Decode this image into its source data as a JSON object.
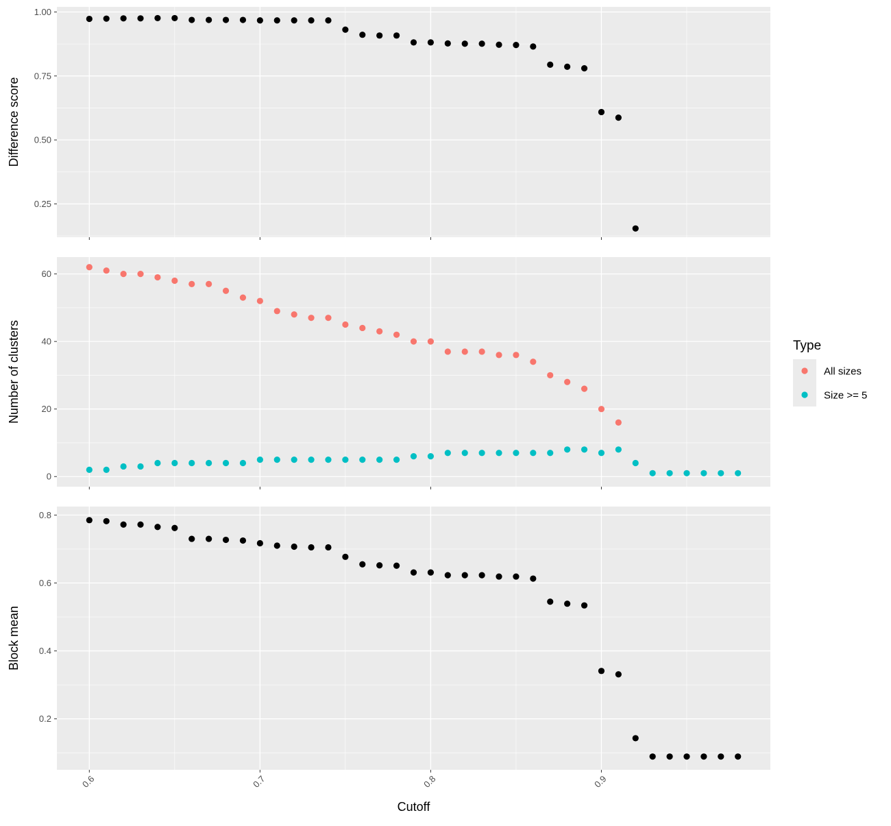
{
  "chart_data": {
    "type": "scatter",
    "xlabel": "Cutoff",
    "x_ticks": [
      "0.6",
      "0.7",
      "0.8",
      "0.9"
    ],
    "x_tick_values": [
      0.6,
      0.7,
      0.8,
      0.9
    ],
    "xlim": [
      0.581,
      0.999
    ],
    "background": "#ebebeb",
    "grid": true,
    "legend": {
      "title": "Type",
      "placement": "right",
      "entries": [
        {
          "label": "All sizes",
          "color": "#f8766d"
        },
        {
          "label": "Size >= 5",
          "color": "#00bfc4"
        }
      ]
    },
    "panels": [
      {
        "ylabel": "Difference score",
        "ylim": [
          0.12,
          1.02
        ],
        "y_ticks": [
          "0.25",
          "0.50",
          "0.75",
          "1.00"
        ],
        "y_tick_values": [
          0.25,
          0.5,
          0.75,
          1.0
        ],
        "series": [
          {
            "color": "#000000",
            "points": [
              [
                0.6,
                0.973
              ],
              [
                0.61,
                0.974
              ],
              [
                0.62,
                0.975
              ],
              [
                0.63,
                0.975
              ],
              [
                0.64,
                0.976
              ],
              [
                0.65,
                0.976
              ],
              [
                0.66,
                0.969
              ],
              [
                0.67,
                0.969
              ],
              [
                0.68,
                0.969
              ],
              [
                0.69,
                0.969
              ],
              [
                0.7,
                0.967
              ],
              [
                0.71,
                0.967
              ],
              [
                0.72,
                0.967
              ],
              [
                0.73,
                0.967
              ],
              [
                0.74,
                0.967
              ],
              [
                0.75,
                0.931
              ],
              [
                0.76,
                0.911
              ],
              [
                0.77,
                0.908
              ],
              [
                0.78,
                0.908
              ],
              [
                0.79,
                0.881
              ],
              [
                0.8,
                0.881
              ],
              [
                0.81,
                0.877
              ],
              [
                0.82,
                0.876
              ],
              [
                0.83,
                0.876
              ],
              [
                0.84,
                0.872
              ],
              [
                0.85,
                0.871
              ],
              [
                0.86,
                0.865
              ],
              [
                0.87,
                0.794
              ],
              [
                0.88,
                0.786
              ],
              [
                0.89,
                0.78
              ],
              [
                0.9,
                0.609
              ],
              [
                0.91,
                0.587
              ],
              [
                0.92,
                0.154
              ]
            ]
          }
        ]
      },
      {
        "ylabel": "Number of clusters",
        "ylim": [
          -3,
          65
        ],
        "y_ticks": [
          "0",
          "20",
          "40",
          "60"
        ],
        "y_tick_values": [
          0,
          20,
          40,
          60
        ],
        "series": [
          {
            "name": "All sizes",
            "color": "#f8766d",
            "points": [
              [
                0.6,
                62
              ],
              [
                0.61,
                61
              ],
              [
                0.62,
                60
              ],
              [
                0.63,
                60
              ],
              [
                0.64,
                59
              ],
              [
                0.65,
                58
              ],
              [
                0.66,
                57
              ],
              [
                0.67,
                57
              ],
              [
                0.68,
                55
              ],
              [
                0.69,
                53
              ],
              [
                0.7,
                52
              ],
              [
                0.71,
                49
              ],
              [
                0.72,
                48
              ],
              [
                0.73,
                47
              ],
              [
                0.74,
                47
              ],
              [
                0.75,
                45
              ],
              [
                0.76,
                44
              ],
              [
                0.77,
                43
              ],
              [
                0.78,
                42
              ],
              [
                0.79,
                40
              ],
              [
                0.8,
                40
              ],
              [
                0.81,
                37
              ],
              [
                0.82,
                37
              ],
              [
                0.83,
                37
              ],
              [
                0.84,
                36
              ],
              [
                0.85,
                36
              ],
              [
                0.86,
                34
              ],
              [
                0.87,
                30
              ],
              [
                0.88,
                28
              ],
              [
                0.89,
                26
              ],
              [
                0.9,
                20
              ],
              [
                0.91,
                16
              ]
            ]
          },
          {
            "name": "Size >= 5",
            "color": "#00bfc4",
            "points": [
              [
                0.6,
                2
              ],
              [
                0.61,
                2
              ],
              [
                0.62,
                3
              ],
              [
                0.63,
                3
              ],
              [
                0.64,
                4
              ],
              [
                0.65,
                4
              ],
              [
                0.66,
                4
              ],
              [
                0.67,
                4
              ],
              [
                0.68,
                4
              ],
              [
                0.69,
                4
              ],
              [
                0.7,
                5
              ],
              [
                0.71,
                5
              ],
              [
                0.72,
                5
              ],
              [
                0.73,
                5
              ],
              [
                0.74,
                5
              ],
              [
                0.75,
                5
              ],
              [
                0.76,
                5
              ],
              [
                0.77,
                5
              ],
              [
                0.78,
                5
              ],
              [
                0.79,
                6
              ],
              [
                0.8,
                6
              ],
              [
                0.81,
                7
              ],
              [
                0.82,
                7
              ],
              [
                0.83,
                7
              ],
              [
                0.84,
                7
              ],
              [
                0.85,
                7
              ],
              [
                0.86,
                7
              ],
              [
                0.87,
                7
              ],
              [
                0.88,
                8
              ],
              [
                0.89,
                8
              ],
              [
                0.9,
                7
              ],
              [
                0.91,
                8
              ],
              [
                0.92,
                4
              ],
              [
                0.93,
                1
              ],
              [
                0.94,
                1
              ],
              [
                0.95,
                1
              ],
              [
                0.96,
                1
              ],
              [
                0.97,
                1
              ],
              [
                0.98,
                1
              ]
            ]
          }
        ]
      },
      {
        "ylabel": "Block mean",
        "ylim": [
          0.05,
          0.825
        ],
        "y_ticks": [
          "0.2",
          "0.4",
          "0.6",
          "0.8"
        ],
        "y_tick_values": [
          0.2,
          0.4,
          0.6,
          0.8
        ],
        "series": [
          {
            "color": "#000000",
            "points": [
              [
                0.6,
                0.785
              ],
              [
                0.61,
                0.782
              ],
              [
                0.62,
                0.772
              ],
              [
                0.63,
                0.772
              ],
              [
                0.64,
                0.765
              ],
              [
                0.65,
                0.762
              ],
              [
                0.66,
                0.73
              ],
              [
                0.67,
                0.73
              ],
              [
                0.68,
                0.727
              ],
              [
                0.69,
                0.725
              ],
              [
                0.7,
                0.717
              ],
              [
                0.71,
                0.71
              ],
              [
                0.72,
                0.707
              ],
              [
                0.73,
                0.705
              ],
              [
                0.74,
                0.705
              ],
              [
                0.75,
                0.677
              ],
              [
                0.76,
                0.655
              ],
              [
                0.77,
                0.652
              ],
              [
                0.78,
                0.651
              ],
              [
                0.79,
                0.631
              ],
              [
                0.8,
                0.631
              ],
              [
                0.81,
                0.623
              ],
              [
                0.82,
                0.623
              ],
              [
                0.83,
                0.623
              ],
              [
                0.84,
                0.619
              ],
              [
                0.85,
                0.619
              ],
              [
                0.86,
                0.613
              ],
              [
                0.87,
                0.545
              ],
              [
                0.88,
                0.539
              ],
              [
                0.89,
                0.534
              ],
              [
                0.9,
                0.341
              ],
              [
                0.91,
                0.331
              ],
              [
                0.92,
                0.143
              ],
              [
                0.93,
                0.089
              ],
              [
                0.94,
                0.089
              ],
              [
                0.95,
                0.089
              ],
              [
                0.96,
                0.089
              ],
              [
                0.97,
                0.089
              ],
              [
                0.98,
                0.089
              ]
            ]
          }
        ]
      }
    ]
  }
}
